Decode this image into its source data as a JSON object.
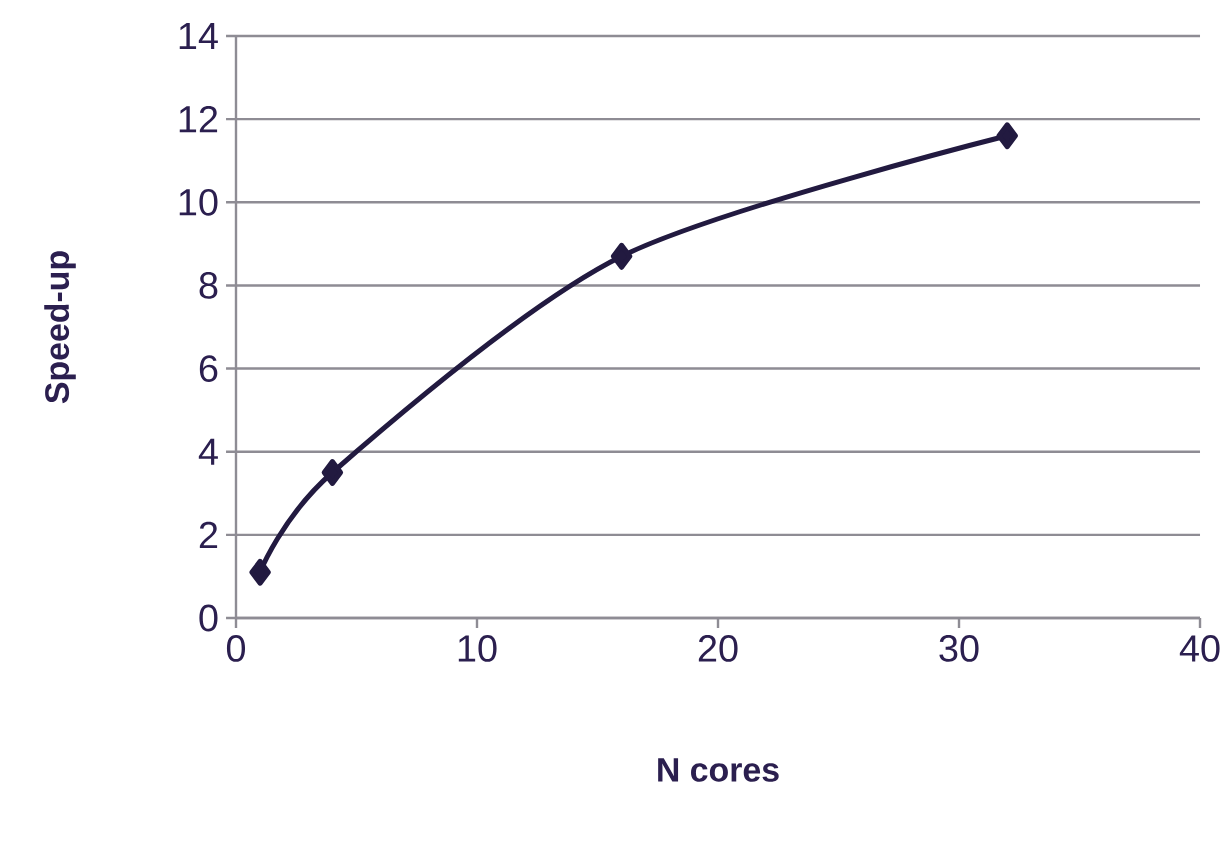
{
  "chart_data": {
    "type": "line",
    "xlabel": "N cores",
    "ylabel": "Speed-up",
    "x": [
      1,
      4,
      16,
      32
    ],
    "series": [
      {
        "color": "#221a40",
        "values": [
          1.1,
          3.5,
          8.7,
          11.6
        ]
      }
    ],
    "xlim": [
      0,
      40
    ],
    "xticks": [
      0,
      10,
      20,
      30,
      40
    ],
    "ylim": [
      0,
      14
    ],
    "yticks": [
      0,
      2,
      4,
      6,
      8,
      10,
      12,
      14
    ],
    "grid": "y",
    "marker": "diamond",
    "line_style": "solid"
  }
}
